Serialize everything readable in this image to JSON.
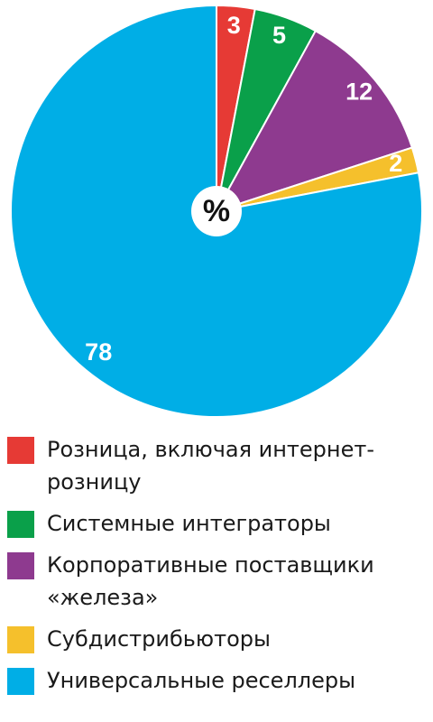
{
  "chart_data": {
    "type": "pie",
    "center_label": "%",
    "categories": [
      "Розница, включая интернет-розницу",
      "Системные интеграторы",
      "Корпоративные поставщики «железа»",
      "Субдистрибьюторы",
      "Универсальные реселлеры"
    ],
    "values": [
      3,
      5,
      12,
      2,
      78
    ],
    "colors": [
      "#e63a35",
      "#0aa04a",
      "#8e3a8f",
      "#f5c02c",
      "#00aee6"
    ]
  }
}
